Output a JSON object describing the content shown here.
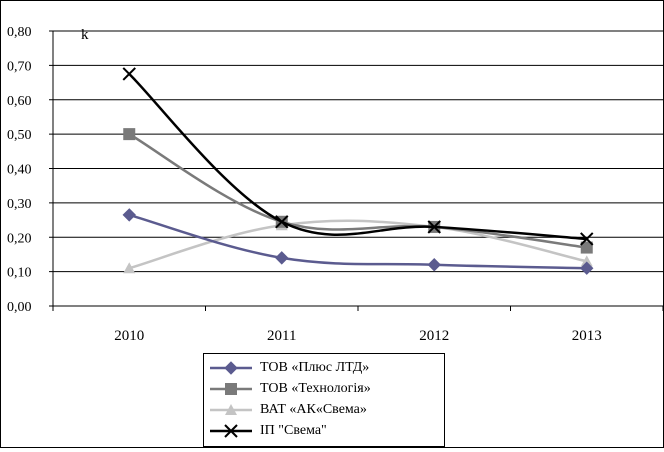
{
  "chart_data": {
    "type": "line",
    "title": "",
    "xlabel": "",
    "ylabel": "k",
    "categories": [
      "2010",
      "2011",
      "2012",
      "2013"
    ],
    "ylim": [
      0,
      0.8
    ],
    "yticks": [
      "0,00",
      "0,10",
      "0,20",
      "0,30",
      "0,40",
      "0,50",
      "0,60",
      "0,70",
      "0,80"
    ],
    "grid": "horizontal",
    "legend_position": "bottom",
    "series": [
      {
        "name": "ТОВ «Плюс ЛТД»",
        "values": [
          0.265,
          0.14,
          0.12,
          0.11
        ],
        "color": "#5b5b8f",
        "marker": "diamond"
      },
      {
        "name": "ТОВ «Технологія»",
        "values": [
          0.5,
          0.245,
          0.23,
          0.17
        ],
        "color": "#7a7a7a",
        "marker": "square"
      },
      {
        "name": "ВАТ «АК«Свема»",
        "values": [
          0.11,
          0.235,
          0.23,
          0.13
        ],
        "color": "#c4c4c4",
        "marker": "triangle"
      },
      {
        "name": "ІП \"Свема\"",
        "values": [
          0.675,
          0.245,
          0.23,
          0.195
        ],
        "color": "#000000",
        "marker": "x"
      }
    ]
  }
}
